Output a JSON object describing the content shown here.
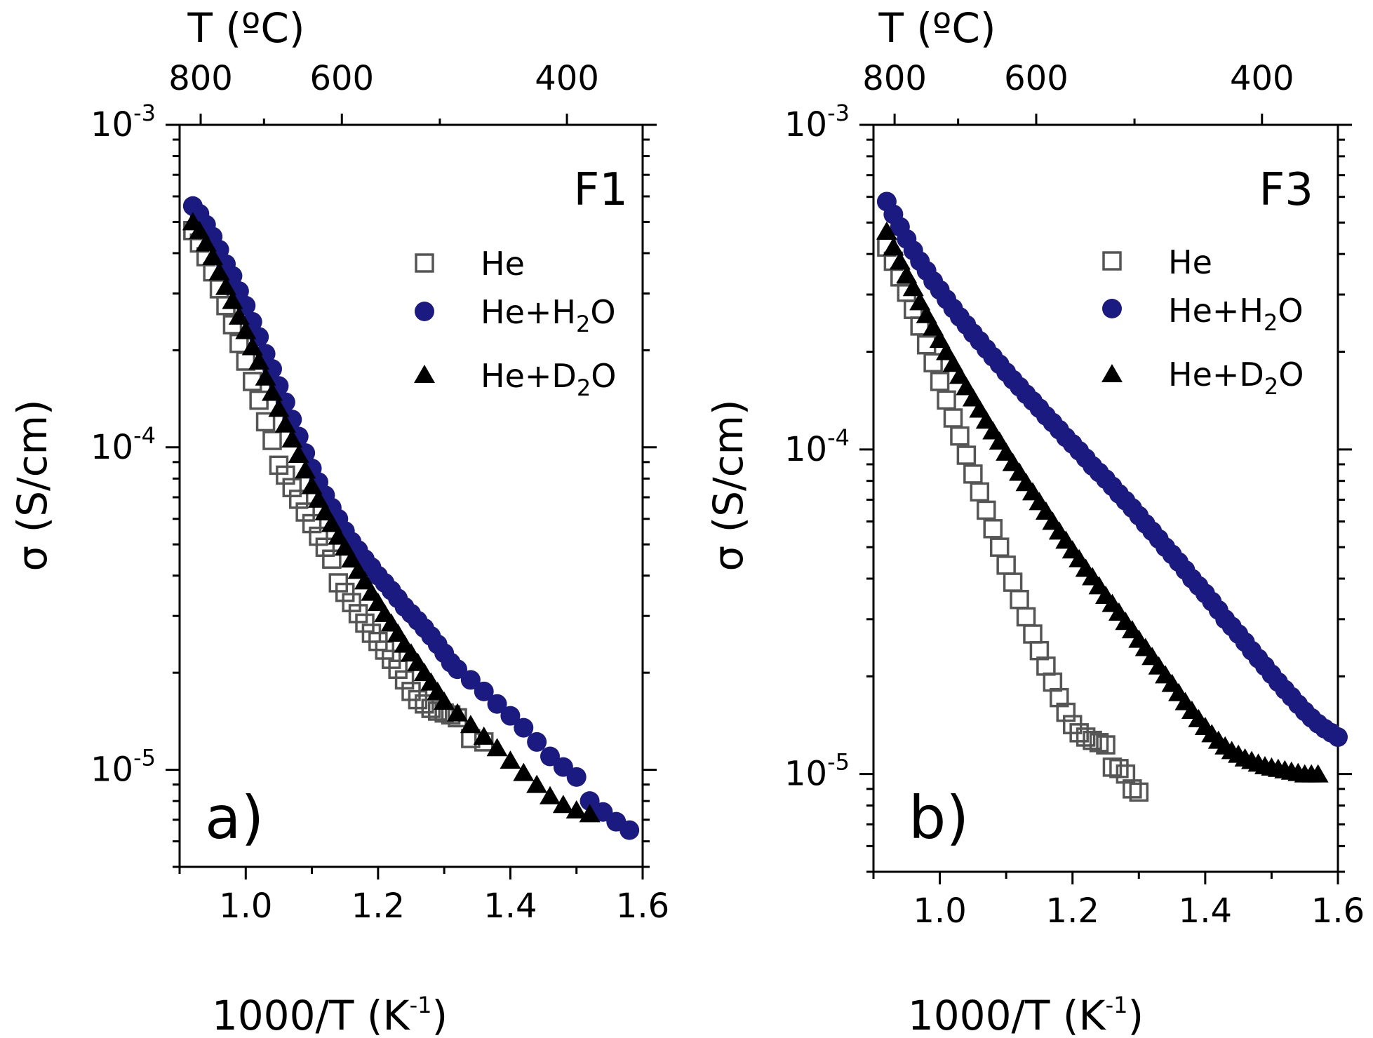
{
  "chart_data": [
    {
      "type": "scatter",
      "panel_letter": "a)",
      "panel_id": "F1",
      "xlabel": "1000/T (K",
      "xlabel_sup": "-1",
      "xlabel_suffix": ")",
      "ylabel": "σ (S/cm)",
      "x2label": "T (ºC)",
      "x2_ticks": [
        800,
        600,
        400
      ],
      "x_ticks": [
        "1.0",
        "1.2",
        "1.4",
        "1.6"
      ],
      "y_ticks": [
        {
          "base": "10",
          "exp": "-3"
        },
        {
          "base": "10",
          "exp": "-4"
        },
        {
          "base": "10",
          "exp": "-5"
        }
      ],
      "xlim": [
        0.9,
        1.6
      ],
      "ylim": [
        5e-06,
        0.001
      ],
      "yscale": "log",
      "legend_position": "upper right",
      "series": [
        {
          "name": "He",
          "marker": "open-square",
          "color": "#555555",
          "x": [
            0.92,
            0.93,
            0.94,
            0.95,
            0.96,
            0.97,
            0.98,
            0.99,
            1.0,
            1.01,
            1.02,
            1.03,
            1.04,
            1.05,
            1.06,
            1.07,
            1.08,
            1.09,
            1.1,
            1.11,
            1.12,
            1.13,
            1.14,
            1.15,
            1.16,
            1.17,
            1.18,
            1.19,
            1.2,
            1.21,
            1.22,
            1.23,
            1.24,
            1.25,
            1.26,
            1.27,
            1.28,
            1.29,
            1.3,
            1.31,
            1.32,
            1.34,
            1.36
          ],
          "y": [
            0.00047,
            0.00043,
            0.00039,
            0.00035,
            0.00031,
            0.000275,
            0.00024,
            0.00021,
            0.000185,
            0.00016,
            0.00014,
            0.00012,
            0.000105,
            8.8e-05,
            8.2e-05,
            7.5e-05,
            6.9e-05,
            6.3e-05,
            5.8e-05,
            5.3e-05,
            4.9e-05,
            4.5e-05,
            3.8e-05,
            3.55e-05,
            3.3e-05,
            3.05e-05,
            2.85e-05,
            2.65e-05,
            2.5e-05,
            2.35e-05,
            2.2e-05,
            2.05e-05,
            1.9e-05,
            1.75e-05,
            1.65e-05,
            1.6e-05,
            1.55e-05,
            1.52e-05,
            1.5e-05,
            1.48e-05,
            1.45e-05,
            1.25e-05,
            1.22e-05
          ]
        },
        {
          "name": "He+H2O",
          "marker": "filled-circle",
          "color": "#1a1a80",
          "x": [
            0.92,
            0.93,
            0.94,
            0.95,
            0.96,
            0.97,
            0.98,
            0.99,
            1.0,
            1.01,
            1.02,
            1.03,
            1.04,
            1.05,
            1.06,
            1.07,
            1.08,
            1.09,
            1.1,
            1.11,
            1.12,
            1.13,
            1.14,
            1.15,
            1.16,
            1.17,
            1.18,
            1.19,
            1.2,
            1.21,
            1.22,
            1.23,
            1.24,
            1.25,
            1.26,
            1.27,
            1.28,
            1.29,
            1.3,
            1.31,
            1.32,
            1.34,
            1.36,
            1.38,
            1.4,
            1.42,
            1.44,
            1.46,
            1.48,
            1.5,
            1.52,
            1.54,
            1.56,
            1.58
          ],
          "y": [
            0.00056,
            0.00053,
            0.00049,
            0.00045,
            0.00041,
            0.00037,
            0.00034,
            0.000305,
            0.000275,
            0.000245,
            0.00022,
            0.000195,
            0.000175,
            0.000155,
            0.000138,
            0.000122,
            0.000108,
            9.6e-05,
            8.6e-05,
            7.8e-05,
            7.1e-05,
            6.5e-05,
            6e-05,
            5.5e-05,
            5.1e-05,
            4.8e-05,
            4.5e-05,
            4.25e-05,
            4e-05,
            3.8e-05,
            3.6e-05,
            3.4e-05,
            3.2e-05,
            3.05e-05,
            2.9e-05,
            2.75e-05,
            2.6e-05,
            2.45e-05,
            2.3e-05,
            2.15e-05,
            2.05e-05,
            1.9e-05,
            1.75e-05,
            1.6e-05,
            1.47e-05,
            1.35e-05,
            1.22e-05,
            1.1e-05,
            1.02e-05,
            9.5e-06,
            8e-06,
            7.4e-06,
            6.9e-06,
            6.5e-06
          ]
        },
        {
          "name": "He+D2O",
          "marker": "filled-triangle",
          "color": "#000000",
          "x": [
            0.92,
            0.93,
            0.94,
            0.95,
            0.96,
            0.97,
            0.98,
            0.99,
            1.0,
            1.01,
            1.02,
            1.03,
            1.04,
            1.05,
            1.06,
            1.07,
            1.08,
            1.09,
            1.1,
            1.11,
            1.12,
            1.13,
            1.14,
            1.15,
            1.16,
            1.17,
            1.18,
            1.19,
            1.2,
            1.21,
            1.22,
            1.23,
            1.24,
            1.25,
            1.26,
            1.27,
            1.28,
            1.29,
            1.3,
            1.32,
            1.34,
            1.36,
            1.38,
            1.4,
            1.42,
            1.44,
            1.46,
            1.48,
            1.5,
            1.52
          ],
          "y": [
            0.0005,
            0.00047,
            0.00043,
            0.00039,
            0.00035,
            0.000315,
            0.000285,
            0.000255,
            0.00023,
            0.000205,
            0.000185,
            0.000165,
            0.000148,
            0.000132,
            0.000118,
            0.000106,
            9.5e-05,
            8.5e-05,
            7.6e-05,
            6.9e-05,
            6.3e-05,
            5.8e-05,
            5.3e-05,
            4.9e-05,
            4.5e-05,
            4.15e-05,
            3.85e-05,
            3.55e-05,
            3.3e-05,
            3.05e-05,
            2.85e-05,
            2.65e-05,
            2.45e-05,
            2.3e-05,
            2.15e-05,
            2e-05,
            1.87e-05,
            1.75e-05,
            1.63e-05,
            1.5e-05,
            1.38e-05,
            1.27e-05,
            1.17e-05,
            1.07e-05,
            9.8e-06,
            9e-06,
            8.3e-06,
            7.8e-06,
            7.5e-06,
            7.3e-06
          ]
        }
      ]
    },
    {
      "type": "scatter",
      "panel_letter": "b)",
      "panel_id": "F3",
      "xlabel": "1000/T (K",
      "xlabel_sup": "-1",
      "xlabel_suffix": ")",
      "ylabel": "σ (S/cm)",
      "x2label": "T (ºC)",
      "x2_ticks": [
        800,
        600,
        400
      ],
      "x_ticks": [
        "1.0",
        "1.2",
        "1.4",
        "1.6"
      ],
      "y_ticks": [
        {
          "base": "10",
          "exp": "-3"
        },
        {
          "base": "10",
          "exp": "-4"
        },
        {
          "base": "10",
          "exp": "-5"
        }
      ],
      "xlim": [
        0.9,
        1.6
      ],
      "ylim": [
        5e-06,
        0.001
      ],
      "yscale": "log",
      "legend_position": "upper right",
      "series": [
        {
          "name": "He",
          "marker": "open-square",
          "color": "#555555",
          "x": [
            0.92,
            0.93,
            0.94,
            0.95,
            0.96,
            0.97,
            0.98,
            0.99,
            1.0,
            1.01,
            1.02,
            1.03,
            1.04,
            1.05,
            1.06,
            1.07,
            1.08,
            1.09,
            1.1,
            1.11,
            1.12,
            1.13,
            1.14,
            1.15,
            1.16,
            1.17,
            1.18,
            1.19,
            1.2,
            1.21,
            1.22,
            1.23,
            1.24,
            1.25,
            1.26,
            1.27,
            1.28,
            1.29,
            1.3
          ],
          "y": [
            0.00042,
            0.00038,
            0.00034,
            0.000305,
            0.00027,
            0.00024,
            0.00021,
            0.000185,
            0.000162,
            0.000142,
            0.000125,
            0.00011,
            9.6e-05,
            8.4e-05,
            7.4e-05,
            6.5e-05,
            5.7e-05,
            5e-05,
            4.4e-05,
            3.9e-05,
            3.45e-05,
            3.05e-05,
            2.7e-05,
            2.4e-05,
            2.15e-05,
            1.92e-05,
            1.72e-05,
            1.55e-05,
            1.42e-05,
            1.34e-05,
            1.3e-05,
            1.27e-05,
            1.25e-05,
            1.23e-05,
            1.05e-05,
            1.04e-05,
            1e-05,
            9e-06,
            8.8e-06
          ]
        },
        {
          "name": "He+H2O",
          "marker": "filled-circle",
          "color": "#1a1a80",
          "x": [
            0.92,
            0.93,
            0.94,
            0.95,
            0.96,
            0.97,
            0.98,
            0.99,
            1.0,
            1.01,
            1.02,
            1.03,
            1.04,
            1.05,
            1.06,
            1.07,
            1.08,
            1.09,
            1.1,
            1.11,
            1.12,
            1.13,
            1.14,
            1.15,
            1.16,
            1.17,
            1.18,
            1.19,
            1.2,
            1.21,
            1.22,
            1.23,
            1.24,
            1.25,
            1.26,
            1.27,
            1.28,
            1.29,
            1.3,
            1.31,
            1.32,
            1.33,
            1.34,
            1.35,
            1.36,
            1.37,
            1.38,
            1.39,
            1.4,
            1.41,
            1.42,
            1.43,
            1.44,
            1.45,
            1.46,
            1.47,
            1.48,
            1.49,
            1.5,
            1.51,
            1.52,
            1.53,
            1.54,
            1.55,
            1.56,
            1.57,
            1.58,
            1.59,
            1.6
          ],
          "y": [
            0.00058,
            0.00053,
            0.000485,
            0.000445,
            0.00041,
            0.00038,
            0.000355,
            0.00033,
            0.00031,
            0.00029,
            0.000272,
            0.000256,
            0.000242,
            0.000228,
            0.000216,
            0.000204,
            0.000193,
            0.000183,
            0.000173,
            0.000164,
            0.000156,
            0.000148,
            0.000141,
            0.000134,
            0.000127,
            0.000121,
            0.000115,
            0.000109,
            0.000104,
            9.9e-05,
            9.4e-05,
            8.9e-05,
            8.5e-05,
            8.1e-05,
            7.7e-05,
            7.3e-05,
            6.95e-05,
            6.6e-05,
            6.25e-05,
            5.9e-05,
            5.6e-05,
            5.3e-05,
            5e-05,
            4.75e-05,
            4.5e-05,
            4.25e-05,
            4e-05,
            3.8e-05,
            3.6e-05,
            3.4e-05,
            3.2e-05,
            3e-05,
            2.85e-05,
            2.7e-05,
            2.55e-05,
            2.4e-05,
            2.27e-05,
            2.15e-05,
            2.03e-05,
            1.92e-05,
            1.82e-05,
            1.73e-05,
            1.64e-05,
            1.56e-05,
            1.49e-05,
            1.43e-05,
            1.38e-05,
            1.34e-05,
            1.3e-05
          ]
        },
        {
          "name": "He+D2O",
          "marker": "filled-triangle",
          "color": "#000000",
          "x": [
            0.92,
            0.93,
            0.94,
            0.95,
            0.96,
            0.97,
            0.98,
            0.99,
            1.0,
            1.01,
            1.02,
            1.03,
            1.04,
            1.05,
            1.06,
            1.07,
            1.08,
            1.09,
            1.1,
            1.11,
            1.12,
            1.13,
            1.14,
            1.15,
            1.16,
            1.17,
            1.18,
            1.19,
            1.2,
            1.21,
            1.22,
            1.23,
            1.24,
            1.25,
            1.26,
            1.27,
            1.28,
            1.29,
            1.3,
            1.31,
            1.32,
            1.33,
            1.34,
            1.35,
            1.36,
            1.37,
            1.38,
            1.39,
            1.4,
            1.41,
            1.42,
            1.43,
            1.44,
            1.45,
            1.46,
            1.47,
            1.48,
            1.49,
            1.5,
            1.51,
            1.52,
            1.53,
            1.54,
            1.55,
            1.56,
            1.57
          ],
          "y": [
            0.00047,
            0.00042,
            0.00038,
            0.000345,
            0.000315,
            0.000285,
            0.00026,
            0.000238,
            0.000218,
            0.0002,
            0.000184,
            0.000169,
            0.000156,
            0.000144,
            0.000133,
            0.000123,
            0.000114,
            0.000106,
            9.8e-05,
            9.1e-05,
            8.5e-05,
            7.9e-05,
            7.4e-05,
            6.9e-05,
            6.45e-05,
            6e-05,
            5.6e-05,
            5.25e-05,
            4.9e-05,
            4.6e-05,
            4.3e-05,
            4.05e-05,
            3.8e-05,
            3.55e-05,
            3.35e-05,
            3.15e-05,
            2.95e-05,
            2.78e-05,
            2.6e-05,
            2.45e-05,
            2.3e-05,
            2.15e-05,
            2.02e-05,
            1.9e-05,
            1.78e-05,
            1.67e-05,
            1.57e-05,
            1.48e-05,
            1.4e-05,
            1.33e-05,
            1.27e-05,
            1.22e-05,
            1.18e-05,
            1.15e-05,
            1.12e-05,
            1.1e-05,
            1.08e-05,
            1.06e-05,
            1.05e-05,
            1.04e-05,
            1.03e-05,
            1.02e-05,
            1.01e-05,
            1e-05,
            1e-05,
            1e-05
          ]
        }
      ]
    }
  ]
}
